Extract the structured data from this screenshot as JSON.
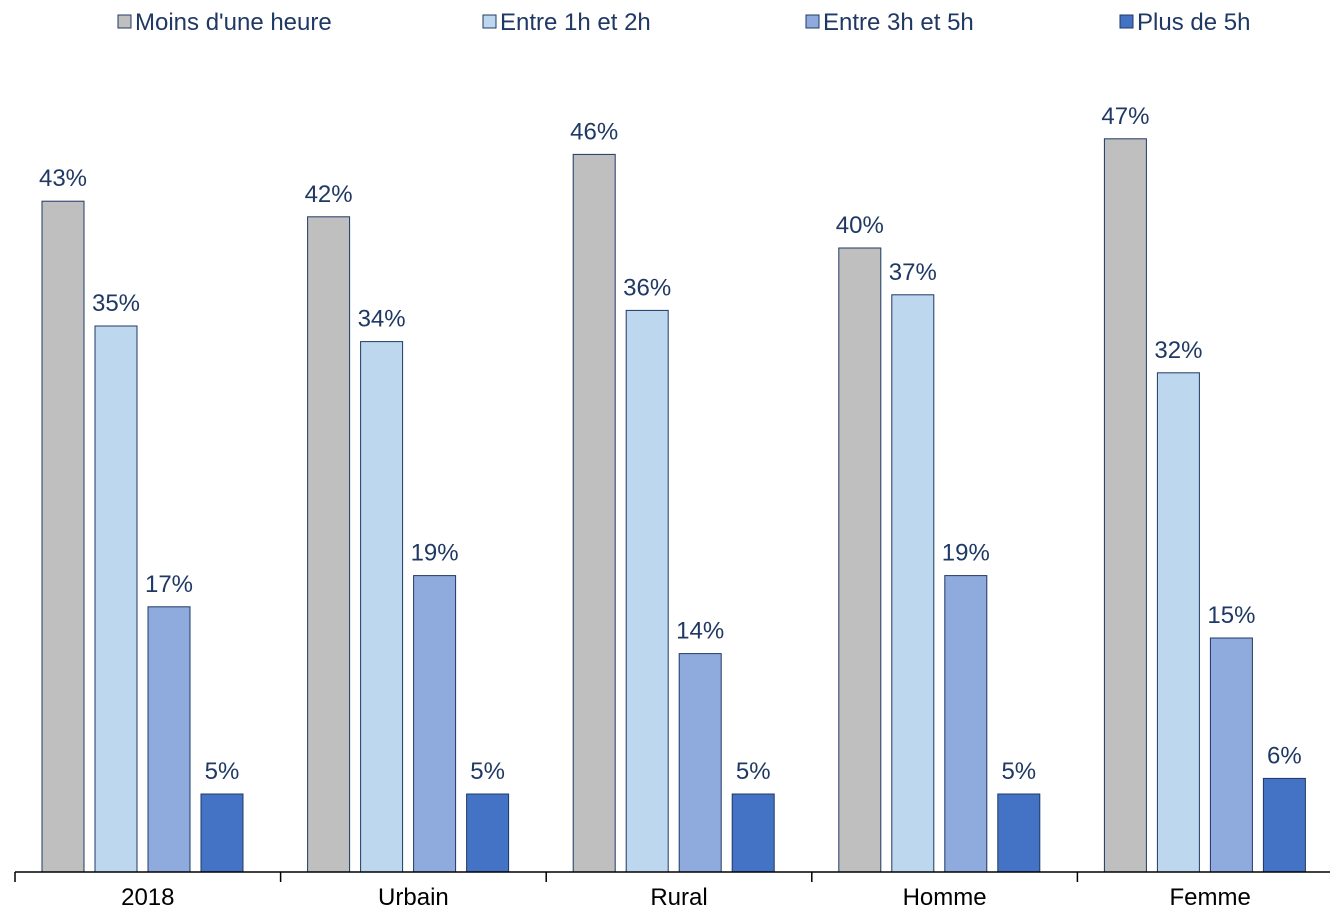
{
  "chart_data": {
    "type": "bar",
    "title": "",
    "xlabel": "",
    "ylabel": "",
    "categories": [
      "2018",
      "Urbain",
      "Rural",
      "Homme",
      "Femme"
    ],
    "series": [
      {
        "name": "Moins d'une heure",
        "color": "#BFBFBF",
        "values": [
          43,
          42,
          46,
          40,
          47
        ],
        "labels": [
          "43%",
          "42%",
          "46%",
          "40%",
          "47%"
        ]
      },
      {
        "name": "Entre 1h et 2h",
        "color": "#BDD7EE",
        "values": [
          35,
          34,
          36,
          37,
          32
        ],
        "labels": [
          "35%",
          "34%",
          "36%",
          "37%",
          "32%"
        ]
      },
      {
        "name": "Entre 3h et 5h",
        "color": "#8FAADC",
        "values": [
          17,
          19,
          14,
          19,
          15
        ],
        "labels": [
          "17%",
          "19%",
          "14%",
          "19%",
          "15%"
        ]
      },
      {
        "name": "Plus de 5h",
        "color": "#4472C4",
        "values": [
          5,
          5,
          5,
          5,
          6
        ],
        "labels": [
          "5%",
          "5%",
          "5%",
          "5%",
          "6%"
        ]
      }
    ],
    "ylim": [
      0,
      50
    ],
    "grid": false,
    "legend_position": "top",
    "label_color": "#1F3864",
    "axis_color": "#000000",
    "bar_border_color": "#1F3864"
  }
}
